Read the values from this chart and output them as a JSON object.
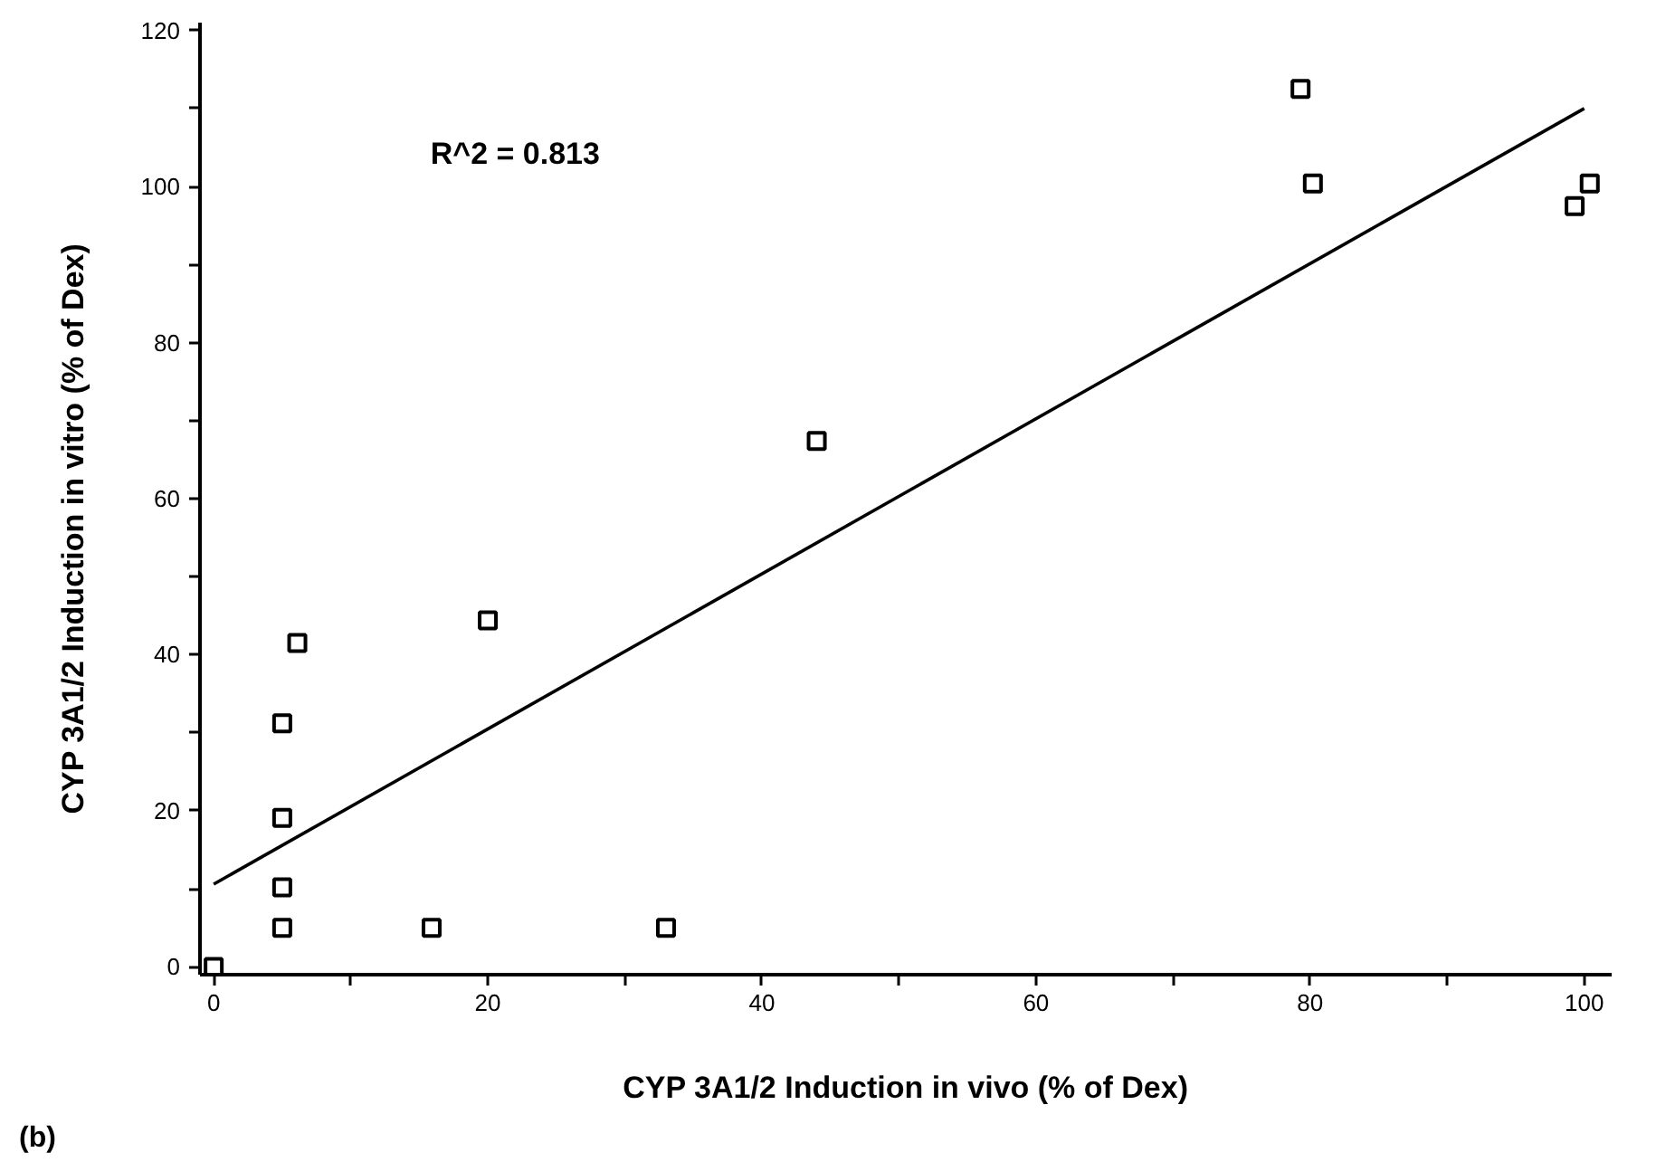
{
  "chart_data": {
    "type": "scatter",
    "xlabel": "CYP 3A1/2 Induction in vivo (% of Dex)",
    "ylabel": "CYP  3A1/2  Induction  in  vitro  (%  of  Dex)",
    "annotations": [
      "R^2 = 0.813",
      "(b)"
    ],
    "series": [
      {
        "color": "#000000",
        "marker": "square",
        "x": [
          0,
          5,
          5,
          5,
          5,
          6.1,
          20,
          15.9,
          33,
          44,
          79.3,
          80.2,
          99.3,
          100.4
        ],
        "values": [
          0,
          5,
          10.2,
          19.1,
          31.2,
          41.5,
          44.4,
          5,
          5,
          67.4,
          112.5,
          100.4,
          97.5,
          100.4
        ]
      },
      {
        "type": "line",
        "color": "#000000",
        "x": [
          0,
          100
        ],
        "values": [
          10.6,
          110
        ]
      }
    ],
    "xlim": [
      -1,
      102
    ],
    "ylim": [
      -1,
      121
    ],
    "xticks": [
      0,
      {
        "value": 10,
        "label": null
      },
      20,
      {
        "value": 30,
        "label": null
      },
      40,
      {
        "value": 50,
        "label": null
      },
      60,
      {
        "value": 70,
        "label": null
      },
      80,
      {
        "value": 90,
        "label": null
      },
      100
    ],
    "yticks": [
      0,
      {
        "value": 10,
        "label": null
      },
      20,
      {
        "value": 30,
        "label": null
      },
      40,
      {
        "value": 50,
        "label": null
      },
      60,
      {
        "value": 70,
        "label": null
      },
      80,
      {
        "value": 90,
        "label": null
      },
      100,
      {
        "value": 110,
        "label": null
      },
      120
    ],
    "grid": false
  }
}
